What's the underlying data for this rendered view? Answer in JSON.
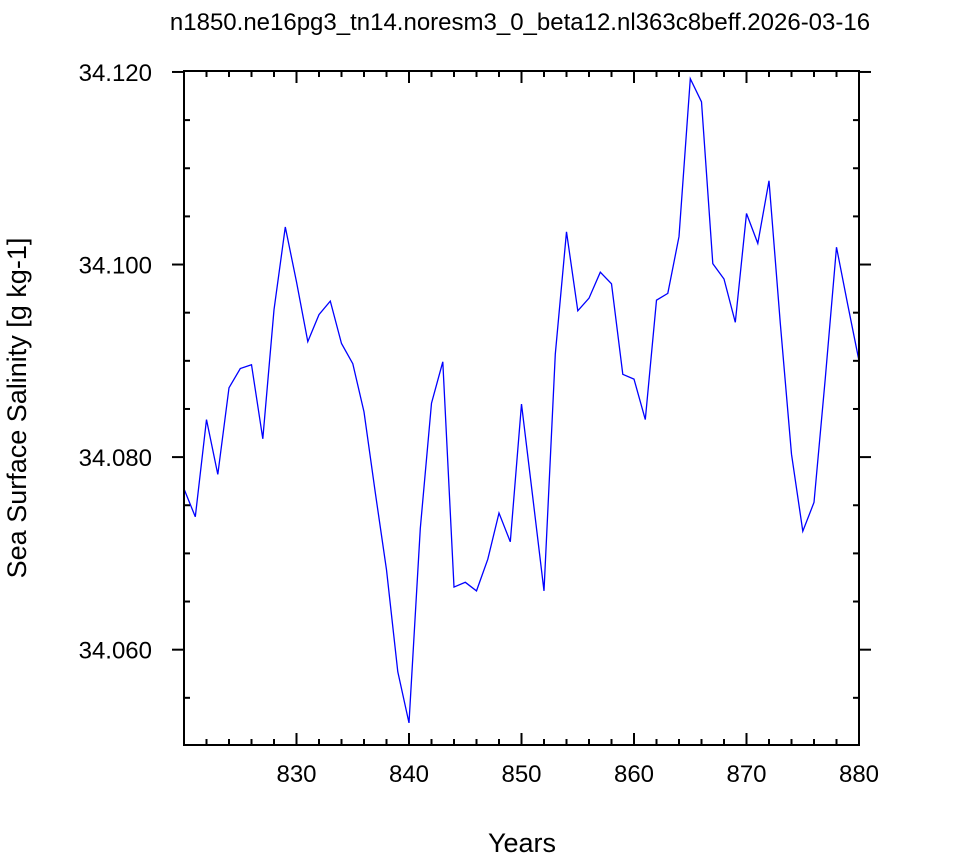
{
  "chart_data": {
    "type": "line",
    "title": "n1850.ne16pg3_tn14.noresm3_0_beta12.nl363c8beff.2026-03-16",
    "xlabel": "Years",
    "ylabel": "Sea Surface Salinity [g kg-1]",
    "xlim": [
      820,
      880
    ],
    "ylim": [
      34.0501,
      34.1201
    ],
    "xticks": [
      830,
      840,
      850,
      860,
      870,
      880
    ],
    "xtick_labels": [
      "830",
      "840",
      "850",
      "860",
      "870",
      "880"
    ],
    "yticks": [
      34.06,
      34.08,
      34.1,
      34.12
    ],
    "ytick_labels": [
      "34.060",
      "34.080",
      "34.100",
      "34.120"
    ],
    "grid": false,
    "line_color": "#0000ff",
    "series": [
      {
        "x": [
          820,
          821,
          822,
          823,
          824,
          825,
          826,
          827,
          828,
          829,
          830,
          831,
          832,
          833,
          834,
          835,
          836,
          837,
          838,
          839,
          840,
          841,
          842,
          843,
          844,
          845,
          846,
          847,
          848,
          849,
          850,
          851,
          852,
          853,
          854,
          855,
          856,
          857,
          858,
          859,
          860,
          861,
          862,
          863,
          864,
          865,
          866,
          867,
          868,
          869,
          870,
          871,
          872,
          873,
          874,
          875,
          876,
          877,
          878,
          879,
          880
        ],
        "values": [
          34.0767,
          34.0738,
          34.0839,
          34.0782,
          34.0872,
          34.0892,
          34.0896,
          34.0819,
          34.0953,
          34.1039,
          34.0982,
          34.092,
          34.0948,
          34.0962,
          34.0918,
          34.0897,
          34.0847,
          34.0763,
          34.0683,
          34.0577,
          34.0524,
          34.0726,
          34.0856,
          34.0899,
          34.0665,
          34.067,
          34.0661,
          34.0694,
          34.0742,
          34.0712,
          34.0855,
          34.0758,
          34.0661,
          34.0907,
          34.1034,
          34.0952,
          34.0965,
          34.0992,
          34.098,
          34.0886,
          34.0881,
          34.0839,
          34.0963,
          34.097,
          34.1029,
          34.1193,
          34.1169,
          34.1001,
          34.0985,
          34.094,
          34.1053,
          34.1022,
          34.1087,
          34.0939,
          34.0803,
          34.0723,
          34.0753,
          34.0882,
          34.1018,
          34.0958,
          34.09
        ]
      }
    ]
  }
}
